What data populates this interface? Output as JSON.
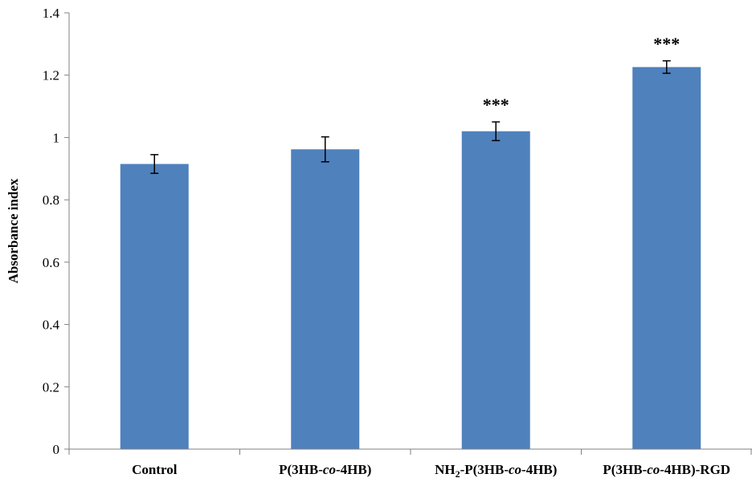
{
  "chart_data": {
    "type": "bar",
    "ylabel": "Absorbance index",
    "ylim": [
      0,
      1.4
    ],
    "yticks": [
      "0",
      "0.2",
      "0.4",
      "0.6",
      "0.8",
      "1",
      "1.2",
      "1.4"
    ],
    "ytick_values": [
      0,
      0.2,
      0.4,
      0.6,
      0.8,
      1,
      1.2,
      1.4
    ],
    "categories": [
      {
        "pre": "Control",
        "sub": "",
        "mid": "",
        "ital": "",
        "post": ""
      },
      {
        "pre": "",
        "sub": "",
        "mid": "P(3HB-",
        "ital": "co",
        "post": "-4HB)"
      },
      {
        "pre": "NH",
        "sub": "2",
        "mid": "-P(3HB-",
        "ital": "co",
        "post": "-4HB)"
      },
      {
        "pre": "",
        "sub": "",
        "mid": "P(3HB-",
        "ital": "co",
        "post": "-4HB)-RGD"
      }
    ],
    "values": [
      0.915,
      0.962,
      1.02,
      1.226
    ],
    "errors": [
      0.03,
      0.04,
      0.03,
      0.02
    ],
    "significance": [
      "",
      "",
      "***",
      "***"
    ],
    "bar_color": "#4F81BD",
    "grid": false
  }
}
